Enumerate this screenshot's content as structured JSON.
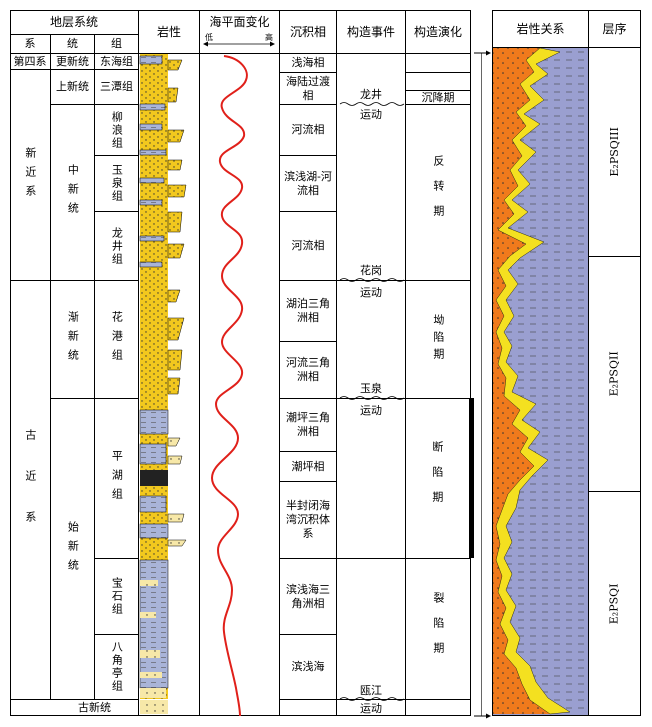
{
  "headers": {
    "strata": "地层系统",
    "system": "系",
    "series": "统",
    "group": "组",
    "lithology": "岩性",
    "sea_level": "海平面变化",
    "sea_low": "低",
    "sea_high": "高",
    "sedimentary_facies": "沉积相",
    "tectonic_event": "构造事件",
    "tectonic_evolution": "构造演化",
    "litho_relation": "岩性关系",
    "sequence": "层序"
  },
  "systems": {
    "quaternary": "第四系",
    "neogene": "新近系",
    "paleogene": "古近系"
  },
  "series_list": {
    "pleistocene": "更新统",
    "pliocene": "上新统",
    "miocene": "中新统",
    "oligocene": "渐新统",
    "eocene": "始新统",
    "paleocene": "古新统"
  },
  "groups": {
    "donghai": "东海组",
    "santan": "三潭组",
    "liulang": "柳浪组",
    "yuquan": "玉泉组",
    "longjing": "龙井组",
    "huagang": "花港组",
    "pinghu": "平湖组",
    "baoshi": "宝石组",
    "bajiaoting": "八角亭组"
  },
  "facies": {
    "f1": "浅海相",
    "f2": "海陆过渡相",
    "f3": "河流相",
    "f4": "滨浅湖-河流相",
    "f5": "河流相",
    "f6": "湖泊三角洲相",
    "f7": "河流三角洲相",
    "f8": "潮坪三角洲相",
    "f9": "潮坪相",
    "f10": "半封闭海湾沉积体系",
    "f11": "滨浅海三角洲相",
    "f12": "滨浅海"
  },
  "events": {
    "e1a": "龙井",
    "e1b": "运动",
    "e2a": "花岗",
    "e2b": "运动",
    "e3a": "玉泉",
    "e3b": "运动",
    "e4a": "瓯江",
    "e4b": "运动"
  },
  "evolution": {
    "subsidence": "沉降期",
    "inversion": "反转期",
    "depression": "坳陷期",
    "faulting": "断陷期",
    "rifting": "裂陷期"
  },
  "sequences": {
    "s3": "E₂PSQIII",
    "s2": "E₂PSQII",
    "s1": "E₂PSQI"
  },
  "colors": {
    "sand_yellow": "#f2c81e",
    "mud_blue": "#9a9fd0",
    "orange": "#f07a1c",
    "curve_red": "#e0201a"
  }
}
